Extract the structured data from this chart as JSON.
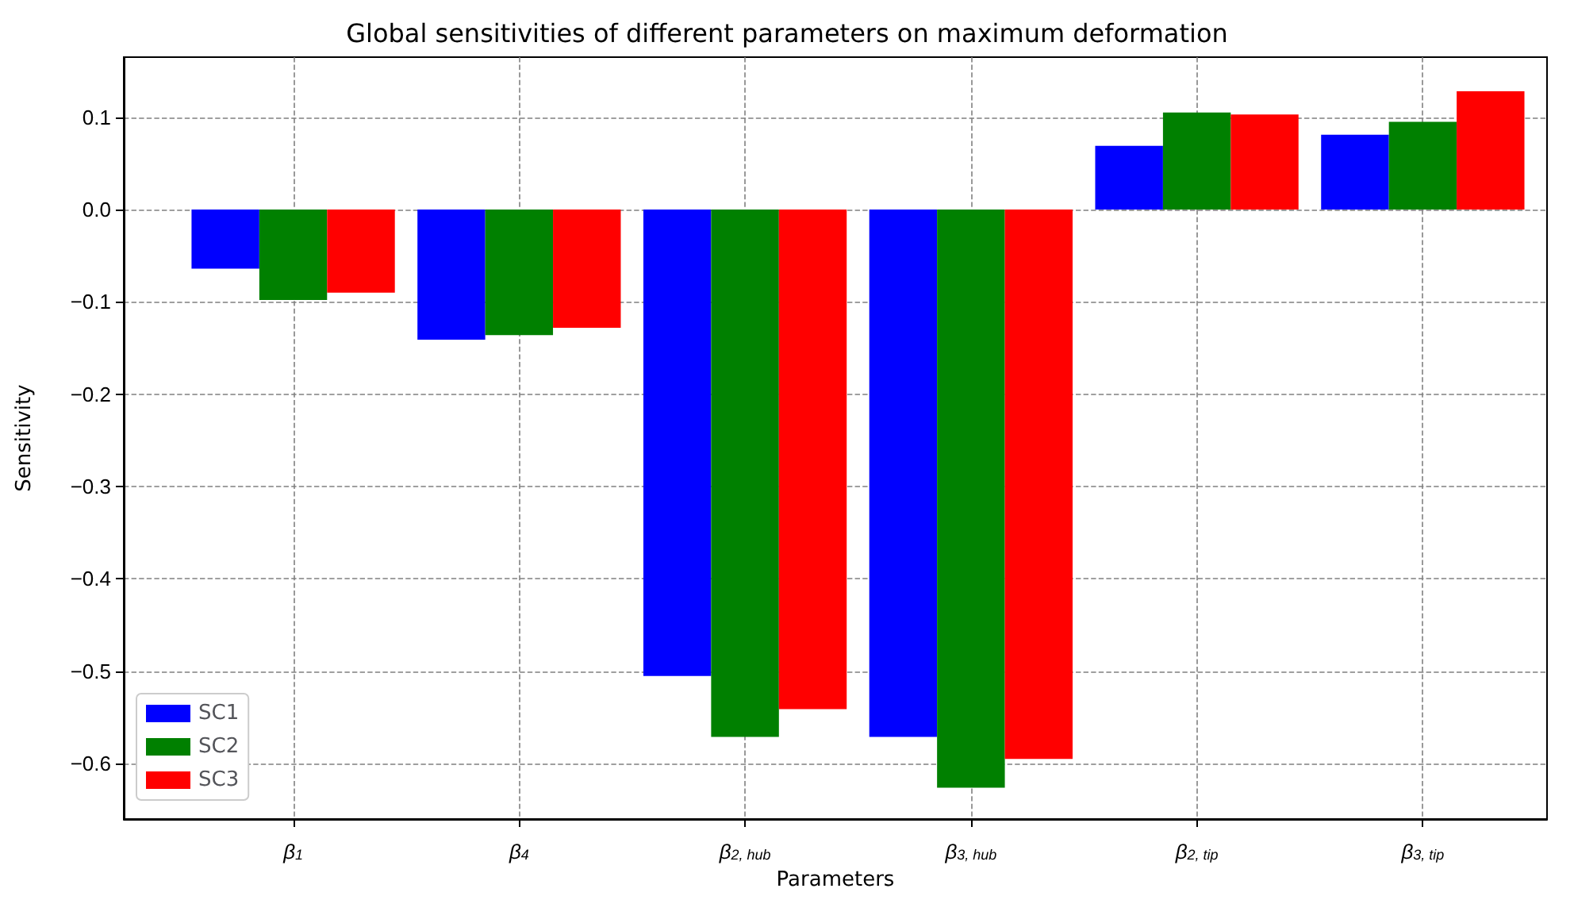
{
  "chart_data": {
    "type": "bar",
    "title": "Global sensitivities of different parameters on maximum deformation",
    "xlabel": "Parameters",
    "ylabel": "Sensitivity",
    "categories": [
      "β$_{1}$",
      "β$_{4}$",
      "β$_{2, hub}$",
      "β$_{3, hub}$",
      "β$_{2, tip}$",
      "β$_{3, tip}$"
    ],
    "series": [
      {
        "name": "SC1",
        "color": "#0000ff",
        "values": [
          -0.064,
          -0.141,
          -0.505,
          -0.571,
          0.069,
          0.081
        ]
      },
      {
        "name": "SC2",
        "color": "#008000",
        "values": [
          -0.098,
          -0.136,
          -0.571,
          -0.626,
          0.105,
          0.095
        ]
      },
      {
        "name": "SC3",
        "color": "#ff0000",
        "values": [
          -0.09,
          -0.128,
          -0.541,
          -0.595,
          0.103,
          0.128
        ]
      }
    ],
    "ylim": [
      -0.66,
      0.165
    ],
    "yticks": [
      {
        "value": -0.6,
        "label": "−0.6"
      },
      {
        "value": -0.5,
        "label": "−0.5"
      },
      {
        "value": -0.4,
        "label": "−0.4"
      },
      {
        "value": -0.3,
        "label": "−0.3"
      },
      {
        "value": -0.2,
        "label": "−0.2"
      },
      {
        "value": -0.1,
        "label": "−0.1"
      },
      {
        "value": 0,
        "label": "0.0"
      },
      0.1
    ],
    "grid": true,
    "legend": "bottom left"
  }
}
